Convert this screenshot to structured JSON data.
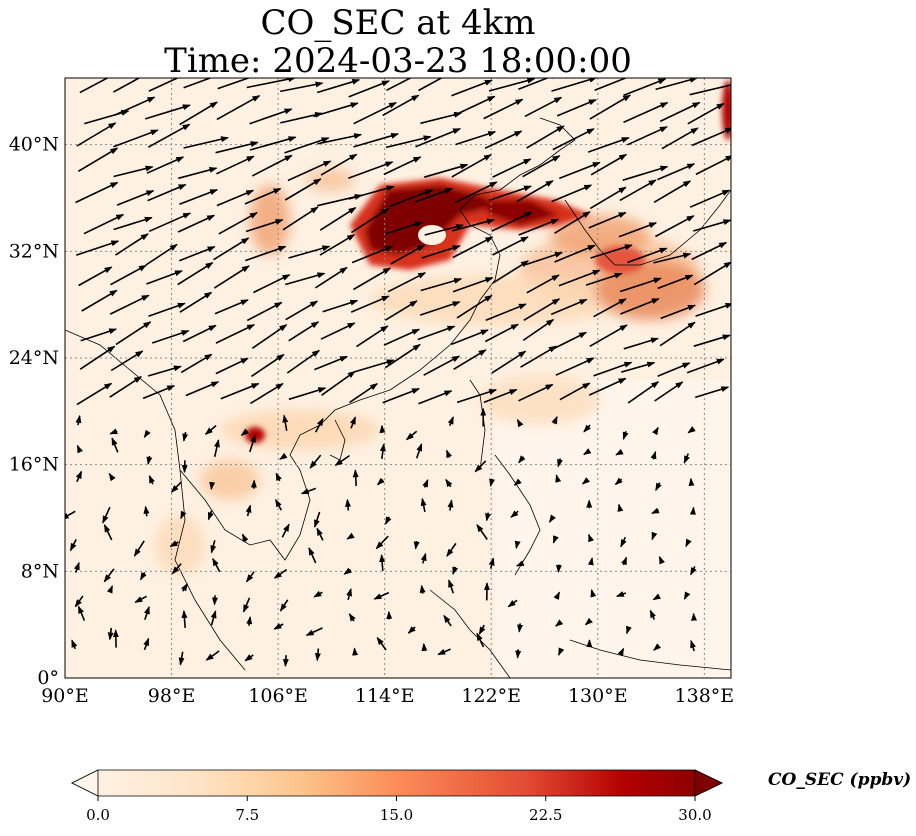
{
  "title": {
    "line1": "CO_SEC at 4km",
    "line2": "Time: 2024-03-23 18:00:00"
  },
  "map": {
    "lon_range": [
      90,
      140
    ],
    "lat_range": [
      0,
      45
    ],
    "lon_ticks": [
      "90°E",
      "98°E",
      "106°E",
      "114°E",
      "122°E",
      "130°E",
      "138°E"
    ],
    "lat_ticks": [
      "0°",
      "8°N",
      "16°N",
      "24°N",
      "32°N",
      "40°N"
    ],
    "gridlines": true,
    "field_color_max": "#7f0000",
    "field_color_min": "#fff5eb"
  },
  "colorbar": {
    "label": "CO_SEC (ppbv)",
    "ticks": [
      "0.0",
      "7.5",
      "15.0",
      "22.5",
      "30.0"
    ],
    "range": [
      0,
      30
    ],
    "colormap": "OrRd",
    "extend": "both"
  }
}
